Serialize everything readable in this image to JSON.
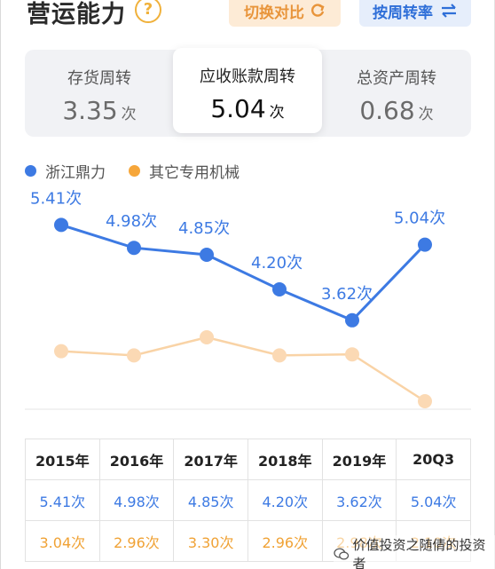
{
  "header": {
    "title": "营运能力",
    "help_symbol": "?",
    "compare_label": "切换对比",
    "sort_label": "按周转率"
  },
  "tabs": [
    {
      "label": "存货周转",
      "value": "3.35",
      "unit": "次",
      "active": false
    },
    {
      "label": "应收账款周转",
      "value": "5.04",
      "unit": "次",
      "active": true
    },
    {
      "label": "总资产周转",
      "value": "0.68",
      "unit": "次",
      "active": false
    }
  ],
  "legend": [
    {
      "label": "浙江鼎力",
      "color": "#3d7ae3"
    },
    {
      "label": "其它专用机械",
      "color": "#f6a63a"
    }
  ],
  "chart_data": {
    "type": "line",
    "categories": [
      "2015年",
      "2016年",
      "2017年",
      "2018年",
      "2019年",
      "20Q3"
    ],
    "series": [
      {
        "name": "浙江鼎力",
        "values": [
          5.41,
          4.98,
          4.85,
          4.2,
          3.62,
          5.04
        ],
        "labels": [
          "5.41次",
          "4.98次",
          "4.85次",
          "4.20次",
          "3.62次",
          "5.04次"
        ],
        "color": "#3d7ae3",
        "point_fill": "#3d7ae3"
      },
      {
        "name": "其它专用机械",
        "values": [
          3.04,
          2.96,
          3.3,
          2.96,
          2.98,
          2.1
        ],
        "color": "#f9d3a6",
        "point_fill": "#fbd9b4"
      }
    ],
    "ylim": [
      1.8,
      6.0
    ]
  },
  "table": {
    "headers": [
      "2015年",
      "2016年",
      "2017年",
      "2018年",
      "2019年",
      "20Q3"
    ],
    "row1": [
      "5.41次",
      "4.98次",
      "4.85次",
      "4.20次",
      "3.62次",
      "5.04次"
    ],
    "row2": [
      "3.04次",
      "2.96次",
      "3.30次",
      "2.96次",
      "2.98次",
      "2.10次"
    ]
  },
  "watermark": "价值投资之随倩的投资者"
}
